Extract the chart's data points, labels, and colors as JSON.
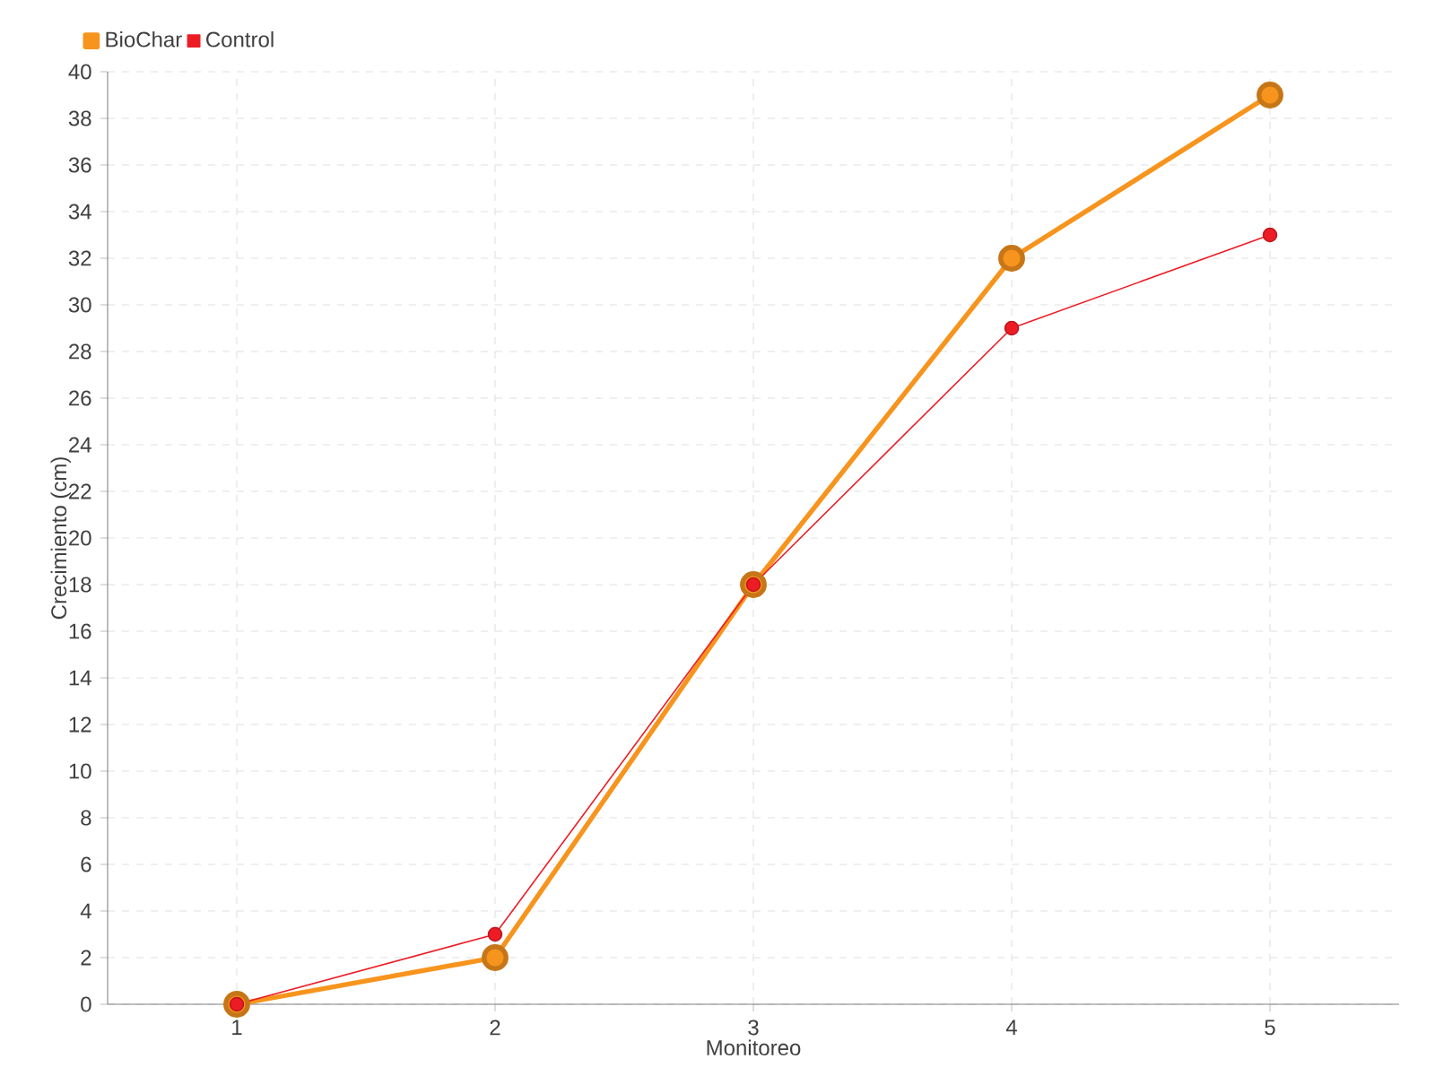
{
  "chart_data": {
    "type": "line",
    "xlabel": "Monitoreo",
    "ylabel": "Crecimiento (cm)",
    "categories": [
      "1",
      "2",
      "3",
      "4",
      "5"
    ],
    "series": [
      {
        "name": "BioChar",
        "color": "#f7941d",
        "values": [
          0,
          2,
          18,
          32,
          39
        ]
      },
      {
        "name": "Control",
        "color": "#ed1c24",
        "values": [
          0,
          3,
          18,
          29,
          33
        ]
      }
    ],
    "ylim": [
      0,
      40
    ],
    "yticks": [
      0,
      2,
      4,
      6,
      8,
      10,
      12,
      14,
      16,
      18,
      20,
      22,
      24,
      26,
      28,
      30,
      32,
      34,
      36,
      38,
      40
    ],
    "grid": true,
    "legend": "top left",
    "marker": "circle",
    "line_style": "solid"
  }
}
